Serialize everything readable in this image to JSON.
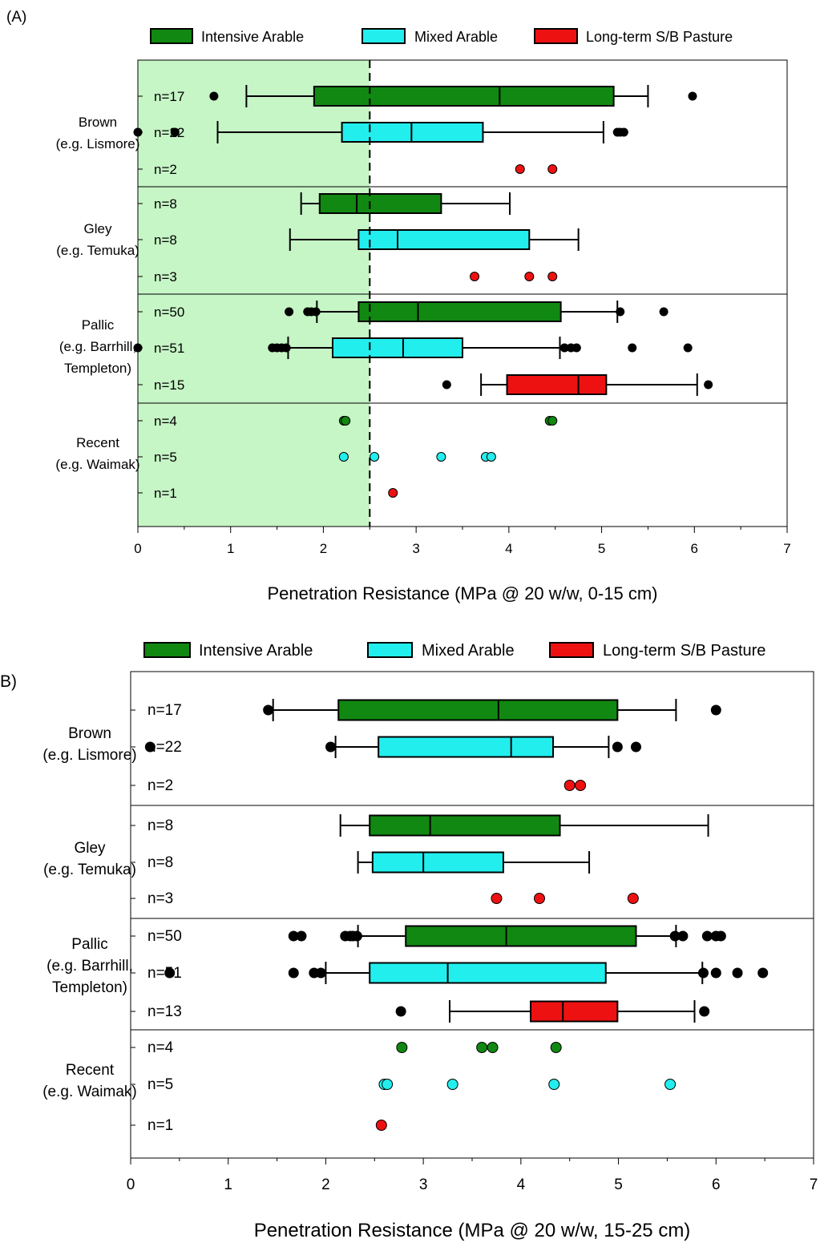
{
  "colors": {
    "intensive": "#118811",
    "mixed": "#22eeee",
    "pasture": "#ee1111",
    "shade": "#c6f5c6",
    "outlier": "#000000"
  },
  "chart_data": [
    {
      "panel_label": "(A)",
      "type": "boxplot",
      "orientation": "horizontal",
      "xlabel": "Penetration Resistance (MPa @ 20 w/w, 0-15 cm)",
      "xlim": [
        0,
        7
      ],
      "xticks": [
        0,
        1,
        2,
        3,
        4,
        5,
        6,
        7
      ],
      "shaded_region": [
        0,
        2.5
      ],
      "reference_line": 2.5,
      "legend": [
        "Intensive Arable",
        "Mixed Arable",
        "Long-term S/B Pasture"
      ],
      "legend_position": "top",
      "groups": [
        {
          "label": [
            "Brown",
            "(e.g. Lismore)"
          ],
          "rows": [
            {
              "series": "intensive",
              "n_label": "n=17",
              "box": [
                1.17,
                1.9,
                3.9,
                5.13,
                5.5
              ],
              "outliers": [
                0.82,
                5.98
              ]
            },
            {
              "series": "mixed",
              "n_label": "n=22",
              "box": [
                0.86,
                2.2,
                2.95,
                3.72,
                5.02
              ],
              "outliers": [
                0.0,
                0.4,
                5.17,
                5.2,
                5.24
              ]
            },
            {
              "series": "pasture",
              "n_label": "n=2",
              "box": null,
              "points": [
                4.12,
                4.47
              ]
            }
          ]
        },
        {
          "label": [
            "Gley",
            "(e.g. Temuka)"
          ],
          "rows": [
            {
              "series": "intensive",
              "n_label": "n=8",
              "box": [
                1.76,
                1.96,
                2.36,
                3.27,
                4.01
              ],
              "outliers": []
            },
            {
              "series": "mixed",
              "n_label": "n=8",
              "box": [
                1.64,
                2.38,
                2.8,
                4.22,
                4.75
              ],
              "outliers": []
            },
            {
              "series": "pasture",
              "n_label": "n=3",
              "box": null,
              "points": [
                3.63,
                4.22,
                4.47
              ]
            }
          ]
        },
        {
          "label": [
            "Pallic",
            "(e.g. Barrhill,",
            "Templeton)"
          ],
          "rows": [
            {
              "series": "intensive",
              "n_label": "n=50",
              "box": [
                1.93,
                2.38,
                3.02,
                4.56,
                5.17
              ],
              "outliers": [
                1.63,
                1.83,
                1.87,
                1.92,
                5.2,
                5.67
              ]
            },
            {
              "series": "mixed",
              "n_label": "n=51",
              "box": [
                1.62,
                2.1,
                2.86,
                3.5,
                4.55
              ],
              "outliers": [
                0.0,
                1.45,
                1.5,
                1.55,
                1.6,
                4.6,
                4.67,
                4.73,
                5.33,
                5.93
              ]
            },
            {
              "series": "pasture",
              "n_label": "n=15",
              "box": [
                3.7,
                3.98,
                4.75,
                5.05,
                6.03
              ],
              "outliers": [
                3.33,
                6.15
              ]
            }
          ]
        },
        {
          "label": [
            "Recent",
            "(e.g. Waimak)"
          ],
          "rows": [
            {
              "series": "intensive",
              "n_label": "n=4",
              "box": null,
              "points": [
                2.22,
                2.24,
                4.44,
                4.47
              ]
            },
            {
              "series": "mixed",
              "n_label": "n=5",
              "box": null,
              "points": [
                2.22,
                2.55,
                3.27,
                3.75,
                3.81
              ]
            },
            {
              "series": "pasture",
              "n_label": "n=1",
              "box": null,
              "points": [
                2.75
              ]
            }
          ]
        }
      ]
    },
    {
      "panel_label": "B)",
      "type": "boxplot",
      "orientation": "horizontal",
      "xlabel": "Penetration Resistance (MPa @ 20 w/w, 15-25 cm)",
      "xlim": [
        0,
        7
      ],
      "xticks": [
        0,
        1,
        2,
        3,
        4,
        5,
        6,
        7
      ],
      "legend": [
        "Intensive Arable",
        "Mixed Arable",
        "Long-term S/B Pasture"
      ],
      "legend_position": "top",
      "groups": [
        {
          "label": [
            "Brown",
            "(e.g. Lismore)"
          ],
          "rows": [
            {
              "series": "intensive",
              "n_label": "n=17",
              "box": [
                1.46,
                2.13,
                3.77,
                4.99,
                5.59
              ],
              "outliers": [
                1.41,
                6.0
              ]
            },
            {
              "series": "mixed",
              "n_label": "n=22",
              "box": [
                2.1,
                2.54,
                3.9,
                4.33,
                4.9
              ],
              "outliers": [
                0.2,
                2.05,
                4.99,
                5.18
              ]
            },
            {
              "series": "pasture",
              "n_label": "n=2",
              "box": null,
              "points": [
                4.5,
                4.61
              ]
            }
          ]
        },
        {
          "label": [
            "Gley",
            "(e.g. Temuka)"
          ],
          "rows": [
            {
              "series": "intensive",
              "n_label": "n=8",
              "box": [
                2.15,
                2.45,
                3.07,
                4.4,
                5.92
              ],
              "outliers": []
            },
            {
              "series": "mixed",
              "n_label": "n=8",
              "box": [
                2.33,
                2.48,
                3.0,
                3.82,
                4.7
              ],
              "outliers": []
            },
            {
              "series": "pasture",
              "n_label": "n=3",
              "box": null,
              "points": [
                3.75,
                4.19,
                5.15
              ]
            }
          ]
        },
        {
          "label": [
            "Pallic",
            "(e.g. Barrhill,",
            "Templeton)"
          ],
          "rows": [
            {
              "series": "intensive",
              "n_label": "n=50",
              "box": [
                2.33,
                2.82,
                3.85,
                5.18,
                5.59
              ],
              "outliers": [
                1.67,
                1.75,
                2.2,
                2.25,
                2.28,
                2.32,
                5.58,
                5.66,
                5.91,
                6.0,
                6.05
              ]
            },
            {
              "series": "mixed",
              "n_label": "n=51",
              "box": [
                2.0,
                2.45,
                3.25,
                4.87,
                5.86
              ],
              "outliers": [
                0.4,
                1.67,
                1.88,
                1.95,
                5.87,
                6.0,
                6.22,
                6.48
              ]
            },
            {
              "series": "pasture",
              "n_label": "n=13",
              "box": [
                3.27,
                4.1,
                4.43,
                4.99,
                5.78
              ],
              "outliers": [
                2.77,
                5.88
              ]
            }
          ]
        },
        {
          "label": [
            "Recent",
            "(e.g. Waimak)"
          ],
          "rows": [
            {
              "series": "intensive",
              "n_label": "n=4",
              "box": null,
              "points": [
                2.78,
                3.6,
                3.71,
                4.36
              ]
            },
            {
              "series": "mixed",
              "n_label": "n=5",
              "box": null,
              "points": [
                2.6,
                2.63,
                3.3,
                4.34,
                5.53
              ]
            },
            {
              "series": "pasture",
              "n_label": "n=1",
              "box": null,
              "points": [
                2.57
              ]
            }
          ]
        }
      ]
    }
  ]
}
